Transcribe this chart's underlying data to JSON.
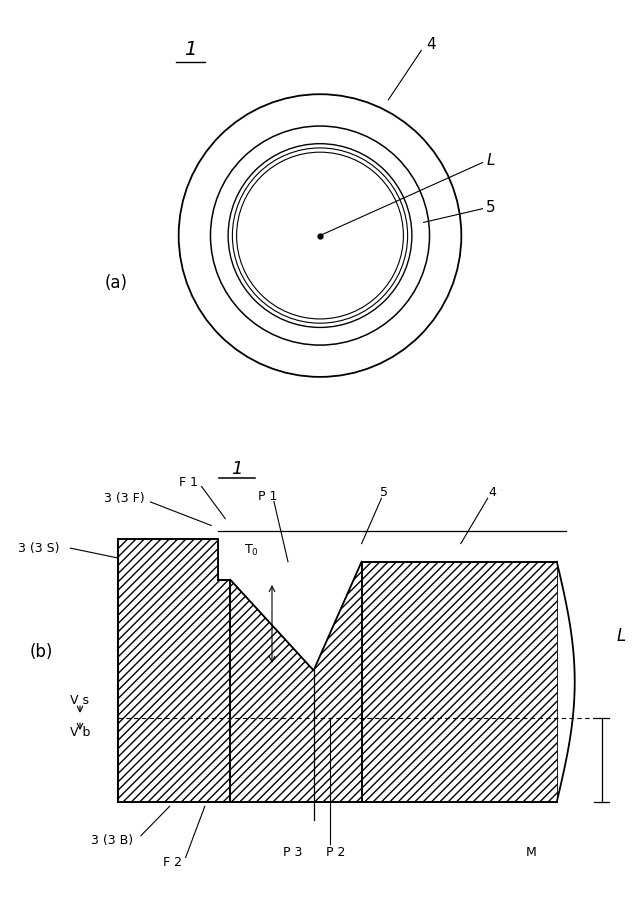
{
  "bg_color": "#ffffff",
  "fig_width": 6.4,
  "fig_height": 9.06,
  "part_a": {
    "label_1": "1",
    "label_4": "4",
    "label_L": "L",
    "label_5": "5",
    "label_a": "(a)"
  },
  "part_b": {
    "label_b": "(b)",
    "label_1": "1",
    "label_F1": "F 1",
    "label_F2": "F 2",
    "label_P1": "P 1",
    "label_P2": "P 2",
    "label_P3": "P 3",
    "label_Vs": "V s",
    "label_Vb": "V b",
    "label_M": "M",
    "label_L": "L",
    "label_3S": "3 (3 S)",
    "label_3F": "3 (3 F)",
    "label_3B": "3 (3 B)",
    "label_4": "4",
    "label_5": "5"
  }
}
